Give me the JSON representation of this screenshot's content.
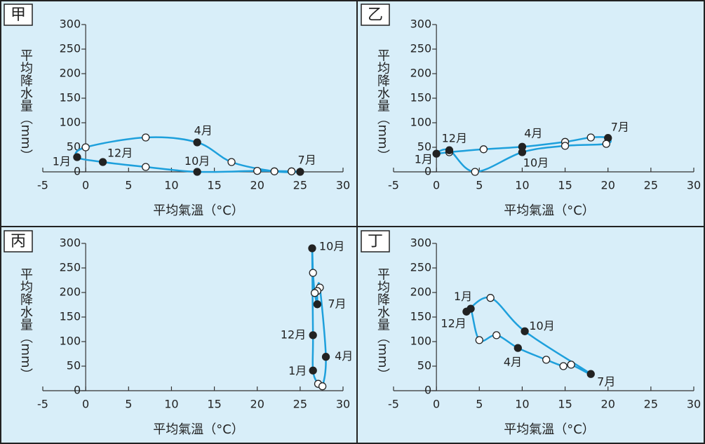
{
  "chart_data": [
    {
      "type": "line",
      "title": "甲",
      "xlabel": "平均氣溫（°C）",
      "ylabel": "平均降水量（mm）",
      "xlim": [
        -5,
        30
      ],
      "ylim": [
        0,
        300
      ],
      "xticks": [
        -5,
        0,
        5,
        10,
        15,
        20,
        25,
        30
      ],
      "yticks": [
        0,
        50,
        100,
        150,
        200,
        250,
        300
      ],
      "color": "#1ea0dc",
      "closed": true,
      "x": [
        -1,
        0,
        7,
        13,
        17,
        22,
        25,
        24,
        20,
        13,
        7,
        2
      ],
      "values": [
        30,
        50,
        70,
        60,
        20,
        1,
        0,
        1,
        2,
        0,
        10,
        20
      ],
      "filled": [
        true,
        false,
        false,
        true,
        false,
        false,
        true,
        false,
        false,
        true,
        false,
        true
      ],
      "annotations": [
        {
          "text": "1月",
          "x": -2.8,
          "y": 20
        },
        {
          "text": "12月",
          "x": 4,
          "y": 37
        },
        {
          "text": "4月",
          "x": 13.7,
          "y": 83
        },
        {
          "text": "10月",
          "x": 13,
          "y": 21
        },
        {
          "text": "7月",
          "x": 25.8,
          "y": 23
        }
      ]
    },
    {
      "type": "line",
      "title": "乙",
      "xlabel": "平均氣溫（°C）",
      "ylabel": "平均降水量（mm）",
      "xlim": [
        -5,
        30
      ],
      "ylim": [
        0,
        300
      ],
      "xticks": [
        -5,
        0,
        5,
        10,
        15,
        20,
        25,
        30
      ],
      "yticks": [
        0,
        50,
        100,
        150,
        200,
        250,
        300
      ],
      "color": "#1ea0dc",
      "closed": true,
      "x": [
        0,
        1.5,
        5.5,
        10,
        15,
        18,
        20,
        19.8,
        15,
        10,
        4.5,
        1.5
      ],
      "values": [
        37,
        40,
        46,
        51,
        61,
        70,
        69,
        57,
        53,
        40,
        0,
        44
      ],
      "filled": [
        true,
        false,
        false,
        true,
        false,
        false,
        true,
        false,
        false,
        true,
        false,
        true
      ],
      "annotations": [
        {
          "text": "12月",
          "x": 2.1,
          "y": 67
        },
        {
          "text": "1月",
          "x": -1.5,
          "y": 24
        },
        {
          "text": "4月",
          "x": 11.3,
          "y": 77
        },
        {
          "text": "10月",
          "x": 11.6,
          "y": 17
        },
        {
          "text": "7月",
          "x": 21.4,
          "y": 90
        }
      ]
    },
    {
      "type": "line",
      "title": "丙",
      "xlabel": "平均氣溫（°C）",
      "ylabel": "平均降水量（mm）",
      "xlim": [
        -5,
        30
      ],
      "ylim": [
        0,
        300
      ],
      "xticks": [
        -5,
        0,
        5,
        10,
        15,
        20,
        25,
        30
      ],
      "yticks": [
        0,
        50,
        100,
        150,
        200,
        250,
        300
      ],
      "color": "#1ea0dc",
      "closed": true,
      "x": [
        26.5,
        27.1,
        27.6,
        28,
        27.3,
        27,
        27,
        26.7,
        26.5,
        26.4,
        26.5
      ],
      "values": [
        41,
        14,
        9,
        69,
        210,
        203,
        176,
        199,
        240,
        290,
        113
      ],
      "filled": [
        true,
        false,
        false,
        true,
        false,
        false,
        true,
        false,
        false,
        true,
        true
      ],
      "annotations": [
        {
          "text": "10月",
          "x": 28.7,
          "y": 293
        },
        {
          "text": "7月",
          "x": 29.3,
          "y": 176
        },
        {
          "text": "12月",
          "x": 24.2,
          "y": 113
        },
        {
          "text": "4月",
          "x": 30.1,
          "y": 69
        },
        {
          "text": "1月",
          "x": 24.7,
          "y": 39
        }
      ]
    },
    {
      "type": "line",
      "title": "丁",
      "xlabel": "平均氣溫（°C）",
      "ylabel": "平均降水量（mm）",
      "xlim": [
        -5,
        30
      ],
      "ylim": [
        0,
        300
      ],
      "xticks": [
        -5,
        0,
        5,
        10,
        15,
        20,
        25,
        30
      ],
      "yticks": [
        0,
        50,
        100,
        150,
        200,
        250,
        300
      ],
      "color": "#1ea0dc",
      "closed": true,
      "x": [
        4,
        5,
        7,
        9.5,
        12.8,
        14.8,
        15.7,
        18,
        10.3,
        6.3,
        3.5
      ],
      "values": [
        167,
        103,
        113,
        87,
        63,
        50,
        53,
        34,
        121,
        189,
        161
      ],
      "filled": [
        true,
        false,
        false,
        true,
        false,
        false,
        false,
        true,
        true,
        false,
        true
      ],
      "annotations": [
        {
          "text": "1月",
          "x": 3.1,
          "y": 191
        },
        {
          "text": "12月",
          "x": 2.0,
          "y": 136
        },
        {
          "text": "10月",
          "x": 12.3,
          "y": 131
        },
        {
          "text": "4月",
          "x": 8.9,
          "y": 57
        },
        {
          "text": "7月",
          "x": 19.8,
          "y": 17
        }
      ]
    }
  ]
}
